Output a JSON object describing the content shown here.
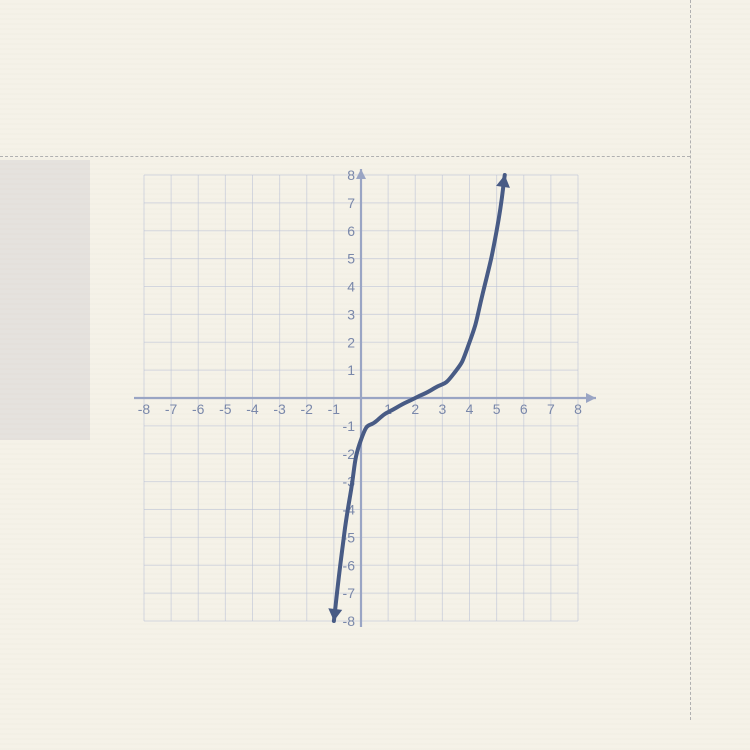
{
  "chart": {
    "type": "line",
    "background_color": "#f5f2e8",
    "plot_background": "#f5f2e8",
    "grid_color": "#b8c0d6",
    "axis_color": "#9aa5c4",
    "label_color": "#7a88aa",
    "curve_color": "#485b85",
    "curve_width": 4,
    "label_fontsize": 14,
    "xlim": [
      -8,
      8
    ],
    "ylim": [
      -8,
      8
    ],
    "xtick_values": [
      -8,
      -7,
      -6,
      -5,
      -4,
      -3,
      -2,
      -1,
      1,
      2,
      3,
      4,
      5,
      6,
      7,
      8
    ],
    "ytick_values": [
      -8,
      -7,
      -6,
      -5,
      -4,
      -3,
      -2,
      -1,
      1,
      2,
      3,
      4,
      5,
      6,
      7,
      8
    ],
    "xtick_labels": [
      "-8",
      "-7",
      "-6",
      "-5",
      "-4",
      "-3",
      "-2",
      "-1",
      "1",
      "2",
      "3",
      "4",
      "5",
      "6",
      "7",
      "8"
    ],
    "ytick_labels": [
      "-8",
      "-7",
      "-6",
      "-5",
      "-4",
      "-3",
      "-2",
      "-1",
      "1",
      "2",
      "3",
      "4",
      "5",
      "6",
      "7",
      "8"
    ],
    "curve_points": [
      {
        "x": -1.0,
        "y": -8.0
      },
      {
        "x": -0.7,
        "y": -5.5
      },
      {
        "x": -0.4,
        "y": -3.5
      },
      {
        "x": 0.0,
        "y": -1.5
      },
      {
        "x": 0.6,
        "y": -0.8
      },
      {
        "x": 1.3,
        "y": -0.35
      },
      {
        "x": 2.0,
        "y": 0.0
      },
      {
        "x": 2.7,
        "y": 0.35
      },
      {
        "x": 3.4,
        "y": 0.85
      },
      {
        "x": 4.0,
        "y": 2.0
      },
      {
        "x": 4.5,
        "y": 3.8
      },
      {
        "x": 5.0,
        "y": 6.0
      },
      {
        "x": 5.3,
        "y": 8.0
      }
    ],
    "arrows": {
      "start": true,
      "end": true,
      "axis": true
    }
  }
}
